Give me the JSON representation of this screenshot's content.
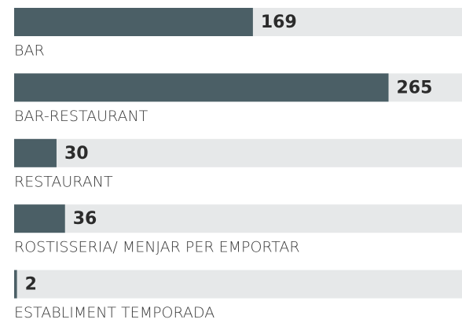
{
  "chart_data": {
    "type": "hbar",
    "categories": [
      "BAR",
      "BAR-RESTAURANT",
      "RESTAURANT",
      "ROSTISSERIA/ MENJAR PER EMPORTAR",
      "ESTABLIMENT TEMPORADA"
    ],
    "values": [
      169,
      265,
      30,
      36,
      2
    ],
    "color": "#4b5f66",
    "xlim": [
      0,
      317
    ]
  }
}
